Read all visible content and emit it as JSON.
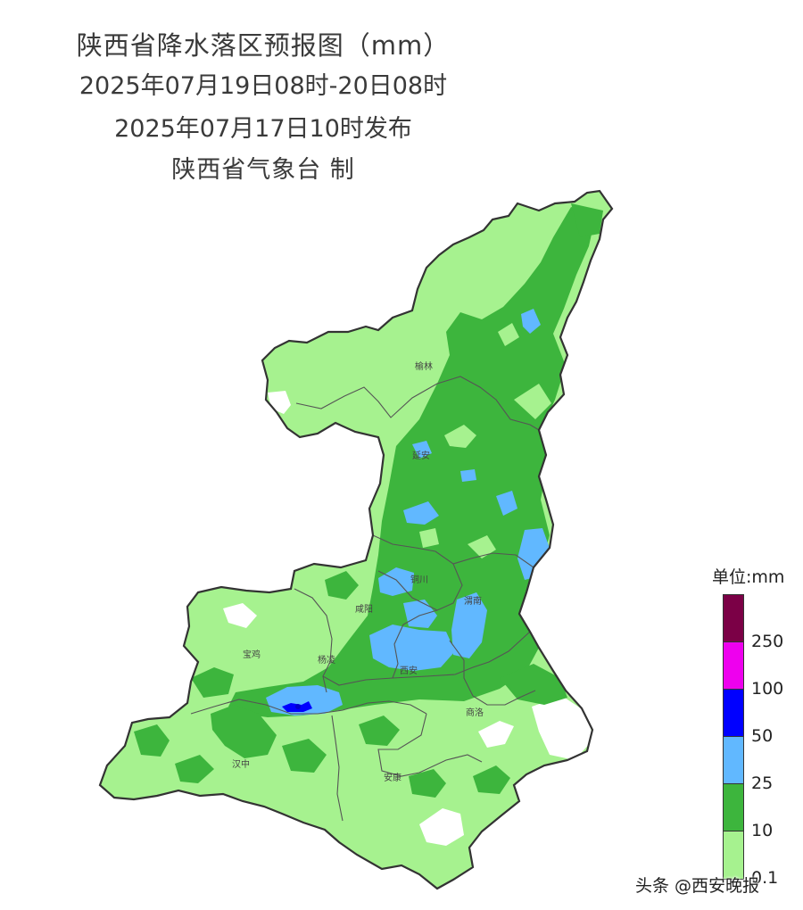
{
  "titles": {
    "line1": "陕西省降水落区预报图（mm）",
    "line2": "2025年07月19日08时-20日08时",
    "line3": "2025年07月17日10时发布",
    "line4": "陕西省气象台 制"
  },
  "cities": {
    "yulin": "榆林",
    "yanan": "延安",
    "tongchuan": "铜川",
    "weinan": "渭南",
    "xianyang": "咸阳",
    "baoji": "宝鸡",
    "yangling": "杨凌",
    "xian": "西安",
    "shangluo": "商洛",
    "hanzhong": "汉中",
    "ankang": "安康"
  },
  "legend": {
    "unit": "单位:mm",
    "labels": [
      "250",
      "100",
      "50",
      "25",
      "10",
      "0.1"
    ],
    "colors": [
      "#7b0046",
      "#ee00ee",
      "#0000ff",
      "#61b8ff",
      "#3db53d",
      "#a6f28f"
    ]
  },
  "colors": {
    "light_green": "#a6f28f",
    "green": "#3db53d",
    "light_blue": "#61b8ff",
    "blue": "#0000ff",
    "border": "#444444"
  },
  "watermark": "头条 @西安晚报"
}
